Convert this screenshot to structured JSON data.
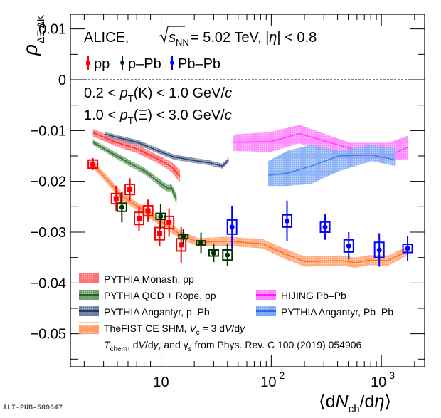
{
  "chart_data": {
    "type": "scatter",
    "title": "ALICE, √s_NN = 5.02 TeV, |η| < 0.8",
    "annotations": [
      "0.2 < p_T(K) < 1.0 GeV/c",
      "1.0 < p_T(Ξ) < 3.0 GeV/c"
    ],
    "xlabel": "⟨dN_ch/dη⟩",
    "ylabel": "ρ_ΔΞ ΔK",
    "xscale": "log",
    "xlim": [
      1.5,
      2470
    ],
    "ylim": [
      -0.0565,
      0.0129
    ],
    "xticks": [
      {
        "value": 10,
        "label": "10"
      },
      {
        "value": 100,
        "label": "10",
        "sup": "2"
      },
      {
        "value": 1000,
        "label": "10",
        "sup": "3"
      }
    ],
    "yticks": [
      {
        "value": 0.01,
        "label": "0.01"
      },
      {
        "value": 0,
        "label": "0"
      },
      {
        "value": -0.01,
        "label": "−0.01"
      },
      {
        "value": -0.02,
        "label": "−0.02"
      },
      {
        "value": -0.03,
        "label": "−0.03"
      },
      {
        "value": -0.04,
        "label": "−0.04"
      },
      {
        "value": -0.05,
        "label": "−0.05"
      }
    ],
    "zero_line": "dashed",
    "grid": false,
    "series": [
      {
        "name": "pp",
        "kind": "data",
        "color": "#ff0000",
        "marker": "square",
        "x": [
          2.4,
          3.9,
          5.2,
          6.3,
          7.6,
          9.7,
          11.8,
          15.2
        ],
        "y": [
          -0.0166,
          -0.0234,
          -0.0216,
          -0.0273,
          -0.0258,
          -0.0303,
          -0.0281,
          -0.0325
        ],
        "stat_err": [
          0.0012,
          0.0025,
          0.0022,
          0.0025,
          0.0022,
          0.0025,
          0.0028,
          0.0035
        ],
        "sys_err": [
          0.0008,
          0.001,
          0.001,
          0.0012,
          0.001,
          0.0012,
          0.0012,
          0.0012
        ]
      },
      {
        "name": "p–Pb",
        "kind": "data",
        "color": "#003300",
        "marker": "circle",
        "x": [
          4.4,
          9.9,
          15.9,
          23,
          30,
          40
        ],
        "y": [
          -0.0251,
          -0.0269,
          -0.0309,
          -0.0321,
          -0.0341,
          -0.0345
        ],
        "stat_err": [
          0.003,
          0.0025,
          0.0015,
          0.002,
          0.0018,
          0.0022
        ],
        "sys_err": [
          0.0008,
          0.0006,
          0.0004,
          0.0004,
          0.0006,
          0.001
        ]
      },
      {
        "name": "Pb–Pb",
        "kind": "data",
        "color": "#0000ff",
        "marker": "circle",
        "x": [
          44,
          139,
          308,
          505,
          956,
          1730
        ],
        "y": [
          -0.029,
          -0.0278,
          -0.029,
          -0.0327,
          -0.0335,
          -0.0332
        ],
        "stat_err": [
          0.0042,
          0.004,
          0.0025,
          0.0027,
          0.0033,
          0.0025
        ],
        "sys_err": [
          0.0014,
          0.0012,
          0.001,
          0.0012,
          0.0015,
          0.0008
        ]
      }
    ],
    "bands": [
      {
        "name": "PYTHIA Monash, pp",
        "color": "#ff2020",
        "x": [
          2.4,
          3.9,
          6.2,
          9.7,
          12.5,
          14.8
        ],
        "y": [
          -0.0104,
          -0.0123,
          -0.0137,
          -0.0158,
          -0.0172,
          -0.019
        ],
        "half_width": [
          0.0007,
          0.0008,
          0.0008,
          0.0008,
          0.001,
          0.0012
        ]
      },
      {
        "name": "PYTHIA QCD + Rope, pp",
        "color": "#1a6b1a",
        "x": [
          2.4,
          4.6,
          7.1,
          10.0,
          11.5,
          12.4,
          13.8
        ],
        "y": [
          -0.0123,
          -0.0158,
          -0.018,
          -0.0205,
          -0.0214,
          -0.0213,
          -0.0235
        ],
        "half_width": [
          0.0005,
          0.0006,
          0.0006,
          0.0007,
          0.0007,
          0.0008,
          0.0009
        ]
      },
      {
        "name": "PYTHIA Angantyr, p–Pb",
        "color": "#1f3a6e",
        "x": [
          3.1,
          6.2,
          13.0,
          20.0,
          27,
          36,
          41
        ],
        "y": [
          -0.0107,
          -0.0124,
          -0.0152,
          -0.0159,
          -0.0163,
          -0.017,
          -0.0158
        ],
        "half_width": [
          0.0004,
          0.0005,
          0.0005,
          0.0005,
          0.0005,
          0.0005,
          0.0005
        ]
      },
      {
        "name": "TheFIST CE SHM, V_c = 3 dV/dy",
        "color": "#ff6a1a",
        "x": [
          2.4,
          4.4,
          7.7,
          12.2,
          16.1,
          22,
          40,
          84,
          130,
          203,
          429,
          579,
          780,
          1150,
          1730
        ],
        "y": [
          -0.0166,
          -0.0229,
          -0.0264,
          -0.0292,
          -0.0309,
          -0.032,
          -0.0318,
          -0.0323,
          -0.0342,
          -0.0358,
          -0.0356,
          -0.036,
          -0.0355,
          -0.0356,
          -0.0337
        ],
        "half_width": [
          0.0007,
          0.0008,
          0.0008,
          0.0008,
          0.0008,
          0.0008,
          0.0009,
          0.0009,
          0.001,
          0.001,
          0.001,
          0.001,
          0.001,
          0.001,
          0.0009
        ]
      },
      {
        "name": "HIJING Pb–Pb",
        "color": "#ff33ff",
        "x": [
          45,
          98,
          180,
          520,
          1170,
          1730
        ],
        "y_upper": [
          -0.0108,
          -0.0103,
          -0.0089,
          -0.0124,
          -0.0124,
          -0.011
        ],
        "y": [
          -0.0123,
          -0.0122,
          -0.0106,
          -0.0135,
          -0.0149,
          -0.0133
        ],
        "y_lower": [
          -0.014,
          -0.0142,
          -0.0125,
          -0.0158,
          -0.0158,
          -0.0158
        ]
      },
      {
        "name": "PYTHIA Angantyr, Pb–Pb",
        "color": "#3377ee",
        "x": [
          94,
          140,
          230,
          410,
          820,
          1350
        ],
        "y_upper": [
          -0.016,
          -0.014,
          -0.0128,
          -0.014,
          -0.0128,
          -0.0135
        ],
        "y": [
          -0.0188,
          -0.0184,
          -0.017,
          -0.015,
          -0.0148,
          -0.0158
        ],
        "y_lower": [
          -0.0209,
          -0.0209,
          -0.0205,
          -0.018,
          -0.016,
          -0.017
        ]
      }
    ],
    "legend_top": [
      {
        "label": "pp",
        "color": "#ff0000",
        "marker": "square"
      },
      {
        "label": "p–Pb",
        "color": "#003300",
        "marker": "circle"
      },
      {
        "label": "Pb–Pb",
        "color": "#0000ff",
        "marker": "circle"
      }
    ],
    "legend_bottom_left": [
      {
        "label": "PYTHIA Monash, pp",
        "color": "#ff2020"
      },
      {
        "label": "PYTHIA QCD + Rope, pp",
        "color": "#1a6b1a"
      },
      {
        "label": "PYTHIA Angantyr, p–Pb",
        "color": "#1f3a6e"
      },
      {
        "label": "TheFIST CE SHM, V_c = 3 dV/dy",
        "color": "#ff6a1a"
      }
    ],
    "legend_bottom_right": [
      {
        "label": "HIJING Pb–Pb",
        "color": "#ff33ff"
      },
      {
        "label": "PYTHIA Angantyr, Pb–Pb",
        "color": "#3377ee"
      }
    ],
    "footnote": "T_chem, dV/dy, and γ_s from Phys. Rev. C 100 (2019) 054906",
    "legend_placement": "top-left and bottom"
  },
  "labels": {
    "title_prefix": "ALICE, ",
    "title_sqrt_s": "s",
    "title_sub_nn": "NN",
    "title_energy": " = 5.02 TeV, |",
    "title_eta": "η",
    "title_eta_cut": "| < 0.8",
    "ann1_a": "0.2 < ",
    "ann1_p": "p",
    "ann1_T": "T",
    "ann1_b": "(K) < 1.0 GeV/",
    "ann1_c": "c",
    "ann2_a": "1.0 < ",
    "ann2_p": "p",
    "ann2_T": "T",
    "ann2_b": "(Ξ) < 3.0 GeV/",
    "ann2_c": "c",
    "leg_pp": "pp",
    "leg_ppb": "p–Pb",
    "leg_pbpb": "Pb–Pb",
    "leg_monash": "PYTHIA Monash, pp",
    "leg_rope": "PYTHIA QCD + Rope, pp",
    "leg_ang_ppb": "PYTHIA Angantyr, p–Pb",
    "leg_fist_a": "TheFIST CE SHM, ",
    "leg_fist_V": "V",
    "leg_fist_c": "c",
    "leg_fist_b": " = 3 d",
    "leg_fist_V2": "V",
    "leg_fist_d": "/d",
    "leg_fist_y": "y",
    "leg_hijing": "HIJING Pb–Pb",
    "leg_ang_pbpb": "PYTHIA Angantyr, Pb–Pb",
    "foot_T": "T",
    "foot_chem": "chem",
    "foot_a": ", d",
    "foot_V": "V",
    "foot_b": "/d",
    "foot_y": "y",
    "foot_c": ", and γ",
    "foot_s": "s",
    "foot_d": " from Phys. Rev. C 100 (2019) 054906",
    "ylabel_rho": "ρ",
    "ylabel_sub": "ΔΞ ΔK",
    "xlabel_open": "⟨d",
    "xlabel_N": "N",
    "xlabel_ch": "ch",
    "xlabel_mid": "/d",
    "xlabel_eta": "η",
    "xlabel_close": "⟩",
    "pub_id": "ALI-PUB-589647"
  }
}
